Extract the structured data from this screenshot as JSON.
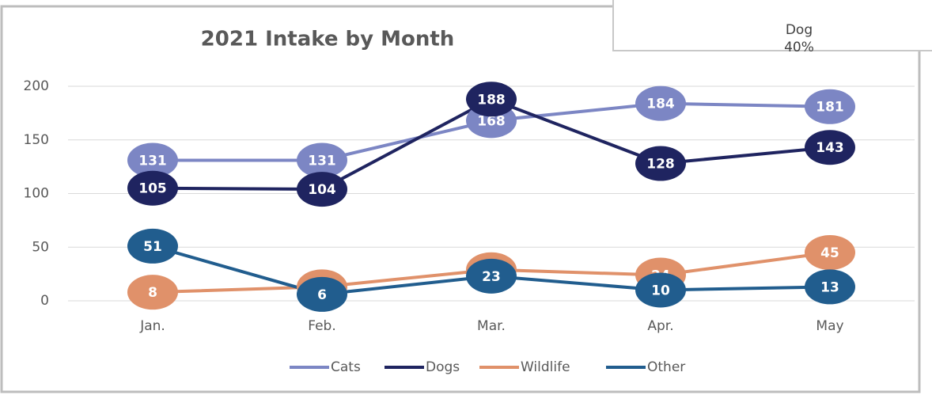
{
  "chart_data": {
    "type": "line",
    "title": "2021 Intake by Month",
    "categories": [
      "Jan.",
      "Feb.",
      "Mar.",
      "Apr.",
      "May"
    ],
    "series": [
      {
        "name": "Cats",
        "color": "#7c86c4",
        "values": [
          131,
          131,
          168,
          184,
          181
        ]
      },
      {
        "name": "Dogs",
        "color": "#1f2460",
        "values": [
          105,
          104,
          188,
          128,
          143
        ]
      },
      {
        "name": "Wildlife",
        "color": "#e0916a",
        "values": [
          8,
          13,
          29,
          24,
          45
        ]
      },
      {
        "name": "Other",
        "color": "#215d8e",
        "values": [
          51,
          6,
          23,
          10,
          13
        ]
      }
    ],
    "ylim": [
      0,
      200
    ],
    "yticks": [
      0,
      50,
      100,
      150,
      200
    ],
    "grid": true,
    "legend": "bottom"
  },
  "overlay": {
    "label": "Dog",
    "percent_label": "40%"
  }
}
